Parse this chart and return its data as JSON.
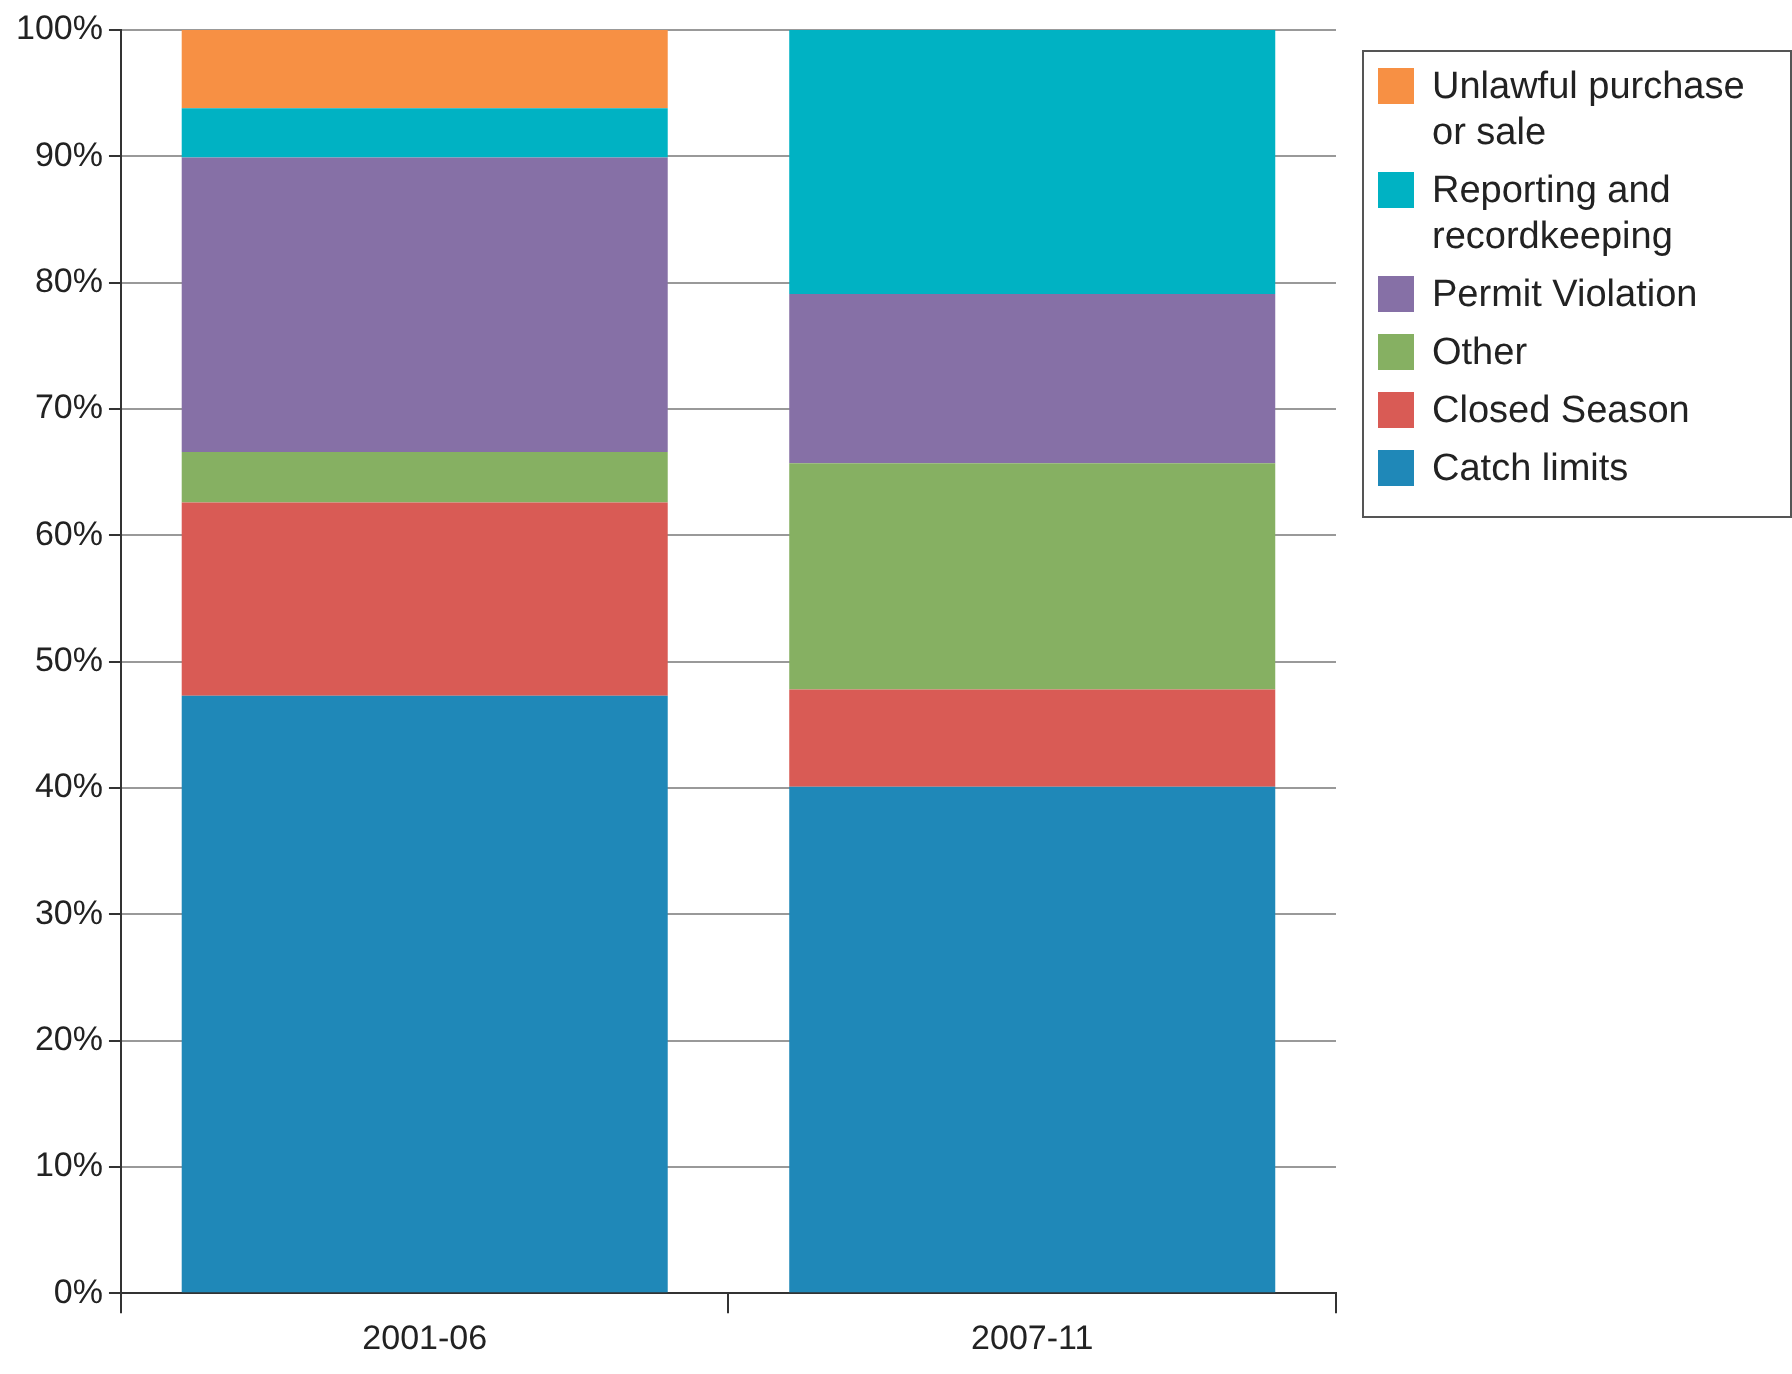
{
  "chart_data": {
    "type": "bar",
    "stacked": true,
    "categories": [
      "2001-06",
      "2007-11"
    ],
    "series": [
      {
        "name": "Catch limits",
        "color": "#1f88b8",
        "values": [
          47.3,
          40.1
        ]
      },
      {
        "name": "Closed Season",
        "color": "#d95b55",
        "values": [
          15.3,
          7.7
        ]
      },
      {
        "name": "Other",
        "color": "#86b062",
        "values": [
          4.0,
          17.9
        ]
      },
      {
        "name": "Permit Violation",
        "color": "#8670a6",
        "values": [
          23.3,
          13.4
        ]
      },
      {
        "name": "Reporting and recordkeeping",
        "color": "#00b2c3",
        "values": [
          3.9,
          20.9
        ]
      },
      {
        "name": "Unlawful purchase or sale",
        "color": "#f79044",
        "values": [
          6.2,
          0
        ]
      }
    ],
    "ylim": [
      0,
      100
    ],
    "yticks": [
      {
        "value": 0,
        "label": "0%"
      },
      {
        "value": 10,
        "label": "10%"
      },
      {
        "value": 20,
        "label": "20%"
      },
      {
        "value": 30,
        "label": "30%"
      },
      {
        "value": 40,
        "label": "40%"
      },
      {
        "value": 50,
        "label": "50%"
      },
      {
        "value": 60,
        "label": "60%"
      },
      {
        "value": 70,
        "label": "70%"
      },
      {
        "value": 80,
        "label": "80%"
      },
      {
        "value": 90,
        "label": "90%"
      },
      {
        "value": 100,
        "label": "100%"
      }
    ],
    "grid": "y",
    "legend": "right"
  }
}
